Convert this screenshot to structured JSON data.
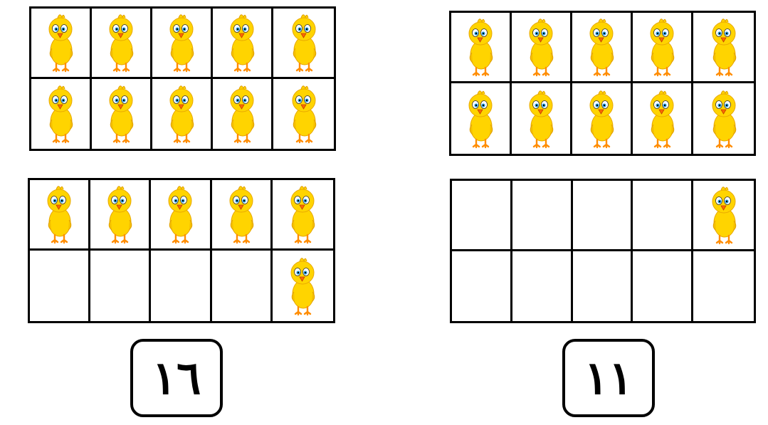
{
  "colors": {
    "chick_body": "#ffd400",
    "chick_shade": "#f0a800",
    "beak": "#ff6a00",
    "feet": "#ff8c00",
    "eye_iris": "#2aa3e8",
    "border": "#000000"
  },
  "icons": {
    "chick": "chick-icon"
  },
  "groups": [
    {
      "id": "left",
      "answer": "١٦",
      "frames": [
        {
          "filled": [
            true,
            true,
            true,
            true,
            true,
            true,
            true,
            true,
            true,
            true
          ]
        },
        {
          "filled": [
            true,
            true,
            true,
            true,
            true,
            false,
            false,
            false,
            false,
            true
          ]
        }
      ]
    },
    {
      "id": "right",
      "answer": "١١",
      "frames": [
        {
          "filled": [
            true,
            true,
            true,
            true,
            true,
            true,
            true,
            true,
            true,
            true
          ]
        },
        {
          "filled": [
            false,
            false,
            false,
            false,
            true,
            false,
            false,
            false,
            false,
            false
          ]
        }
      ]
    }
  ]
}
